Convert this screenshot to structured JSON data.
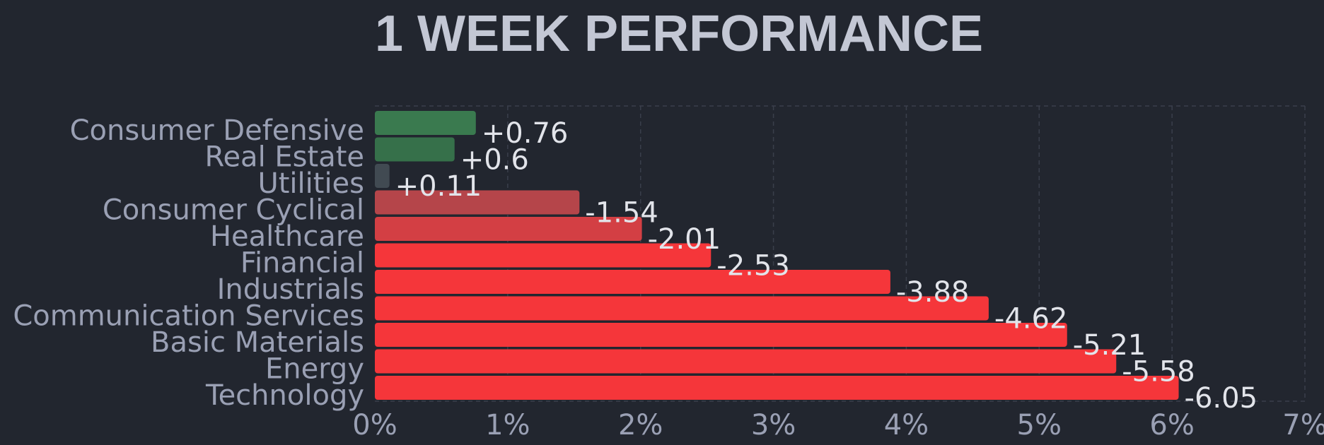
{
  "chart_data": {
    "type": "bar",
    "orientation": "horizontal",
    "title": "1 WEEK PERFORMANCE",
    "categories": [
      "Consumer Defensive",
      "Real Estate",
      "Utilities",
      "Consumer Cyclical",
      "Healthcare",
      "Financial",
      "Industrials",
      "Communication Services",
      "Basic Materials",
      "Energy",
      "Technology"
    ],
    "values": [
      0.76,
      0.6,
      0.11,
      -1.54,
      -2.01,
      -2.53,
      -3.88,
      -4.62,
      -5.21,
      -5.58,
      -6.05
    ],
    "value_labels": [
      "+0.76",
      "+0.6",
      "+0.11",
      "-1.54",
      "-2.01",
      "-2.53",
      "-3.88",
      "-4.62",
      "-5.21",
      "-5.58",
      "-6.05"
    ],
    "bar_colors": [
      "#3a7a4f",
      "#36704a",
      "#414a52",
      "#b5454a",
      "#d33f44",
      "#f5363a",
      "#f5363a",
      "#f5363a",
      "#f5363a",
      "#f5363a",
      "#f5363a"
    ],
    "x_axis": {
      "scale": "absolute magnitude (percent)",
      "xlim": [
        0,
        7
      ],
      "ticks": [
        0,
        1,
        2,
        3,
        4,
        5,
        6,
        7
      ],
      "tick_labels": [
        "0%",
        "1%",
        "2%",
        "3%",
        "4%",
        "5%",
        "6%",
        "7%"
      ]
    },
    "xlabel": "",
    "ylabel": "",
    "grid": true,
    "legend": "none"
  },
  "colors": {
    "background": "#22262f",
    "title": "#c3c7d4",
    "axis_text": "#9aa0b4",
    "value_text": "#e2e4ea",
    "grid": "#3a3f4b"
  }
}
